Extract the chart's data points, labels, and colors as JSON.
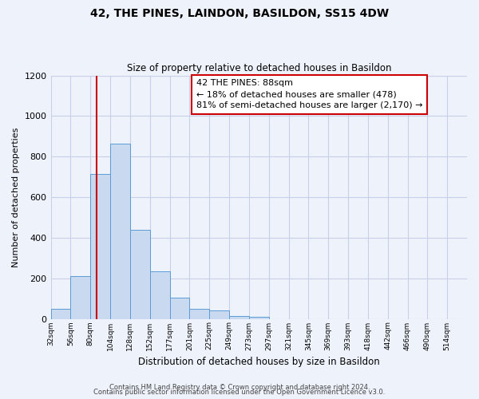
{
  "title": "42, THE PINES, LAINDON, BASILDON, SS15 4DW",
  "subtitle": "Size of property relative to detached houses in Basildon",
  "xlabel": "Distribution of detached houses by size in Basildon",
  "ylabel": "Number of detached properties",
  "bin_labels": [
    "32sqm",
    "56sqm",
    "80sqm",
    "104sqm",
    "128sqm",
    "152sqm",
    "177sqm",
    "201sqm",
    "225sqm",
    "249sqm",
    "273sqm",
    "297sqm",
    "321sqm",
    "345sqm",
    "369sqm",
    "393sqm",
    "418sqm",
    "442sqm",
    "466sqm",
    "490sqm",
    "514sqm"
  ],
  "bar_heights": [
    50,
    210,
    715,
    865,
    440,
    235,
    105,
    50,
    40,
    15,
    10,
    0,
    0,
    0,
    0,
    0,
    0,
    0,
    0,
    0,
    0
  ],
  "bar_color": "#c8d9f0",
  "bar_edge_color": "#5b9bd5",
  "background_color": "#eef2fb",
  "grid_color": "#c8cfe8",
  "vline_color": "#cc0000",
  "annotation_text": "42 THE PINES: 88sqm\n← 18% of detached houses are smaller (478)\n81% of semi-detached houses are larger (2,170) →",
  "annotation_box_color": "#ffffff",
  "annotation_box_edge": "#cc0000",
  "ylim": [
    0,
    1200
  ],
  "yticks": [
    0,
    200,
    400,
    600,
    800,
    1000,
    1200
  ],
  "footer1": "Contains HM Land Registry data © Crown copyright and database right 2024.",
  "footer2": "Contains public sector information licensed under the Open Government Licence v3.0."
}
